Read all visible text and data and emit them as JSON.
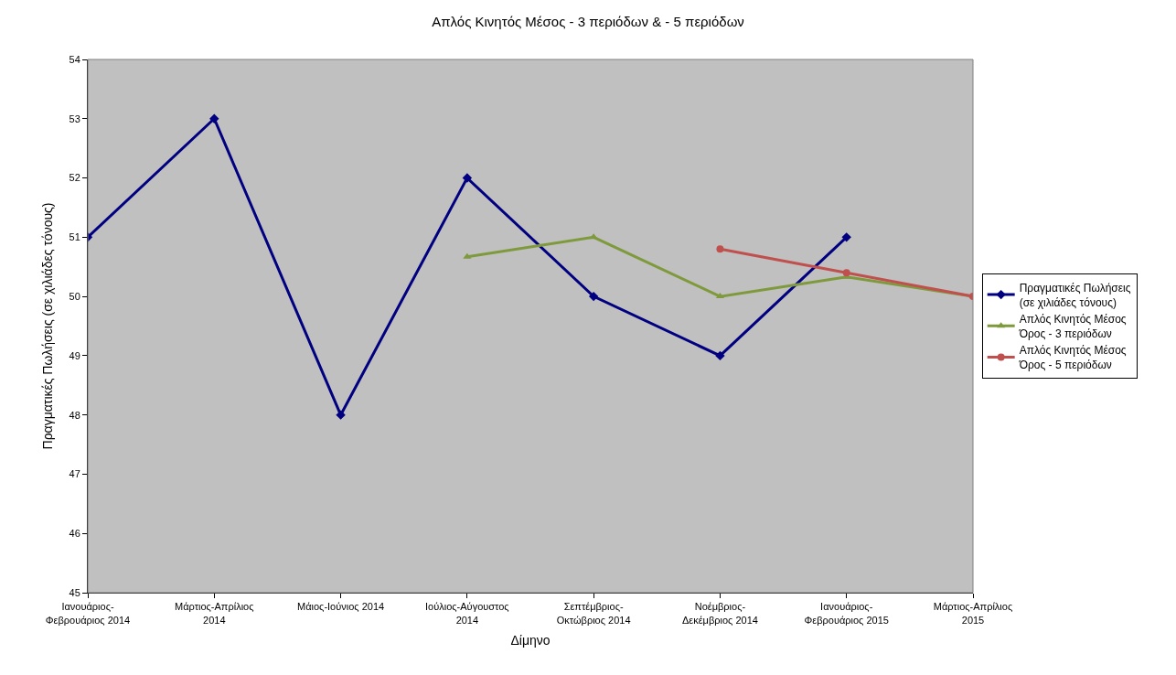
{
  "chart_data": {
    "type": "line",
    "title": "Απλός Κινητός Μέσος - 3 περιόδων & - 5 περιόδων",
    "xlabel": "Δίμηνο",
    "ylabel": "Πραγματικές Πωλήσεις (σε χιλιάδες τόνους)",
    "categories": [
      "Ιανουάριος-\nΦεβρουάριος 2014",
      "Μάρτιος-Απρίλιος\n2014",
      "Μάιος-Ιούνιος 2014",
      "Ιούλιος-Αύγουστος\n2014",
      "Σεπτέμβριος-\nΟκτώβριος 2014",
      "Νοέμβριος-\nΔεκέμβριος 2014",
      "Ιανουάριος-\nΦεβρουάριος 2015",
      "Μάρτιος-Απρίλιος\n2015"
    ],
    "series": [
      {
        "name": "Πραγματικές Πωλήσεις\n(σε χιλιάδες τόνους)",
        "color": "#000080",
        "marker": "diamond",
        "values": [
          51,
          53,
          48,
          52,
          50,
          49,
          51,
          null
        ]
      },
      {
        "name": "Απλός Κινητός Μέσος\nΌρος - 3 περιόδων",
        "color": "#7f9a3c",
        "marker": "triangle",
        "values": [
          null,
          null,
          null,
          50.67,
          51,
          50,
          50.33,
          50
        ]
      },
      {
        "name": "Απλός Κινητός Μέσος\nΌρος - 5 περιόδων",
        "color": "#c0504d",
        "marker": "circle",
        "values": [
          null,
          null,
          null,
          null,
          null,
          50.8,
          50.4,
          50
        ]
      }
    ],
    "ylim": [
      45,
      54
    ],
    "yticks": [
      45,
      46,
      47,
      48,
      49,
      50,
      51,
      52,
      53,
      54
    ],
    "grid": false,
    "legend": "right",
    "line_style": "solid"
  }
}
